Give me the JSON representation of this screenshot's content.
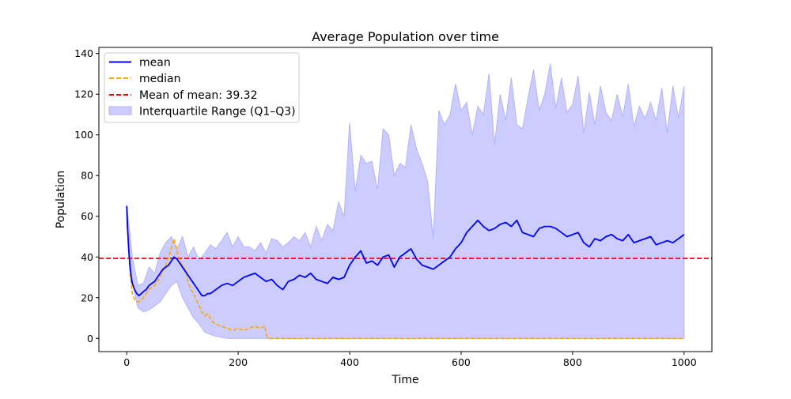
{
  "chart_data": {
    "type": "line",
    "title": "Average Population over time",
    "xlabel": "Time",
    "ylabel": "Population",
    "xlim": [
      -50,
      1050
    ],
    "ylim": [
      -6.5,
      143
    ],
    "xticks": [
      0,
      200,
      400,
      600,
      800,
      1000
    ],
    "yticks": [
      0,
      20,
      40,
      60,
      80,
      100,
      120,
      140
    ],
    "grid": false,
    "legend_position": "top-left",
    "colors": {
      "mean": "#0000ff",
      "median": "#ffa500",
      "mean_of_mean": "#ff0000",
      "iqr_fill": "#ccccff",
      "iqr_edge": "#b3b3ff"
    },
    "series": [
      {
        "name": "mean",
        "style": "solid",
        "color": "#0000ff",
        "x": [
          0,
          2,
          4,
          6,
          8,
          10,
          14,
          18,
          22,
          26,
          30,
          35,
          40,
          45,
          50,
          55,
          60,
          65,
          70,
          75,
          80,
          85,
          90,
          95,
          100,
          105,
          110,
          115,
          120,
          125,
          130,
          135,
          140,
          145,
          150,
          160,
          170,
          180,
          190,
          200,
          210,
          220,
          230,
          240,
          250,
          260,
          270,
          280,
          290,
          300,
          310,
          320,
          330,
          340,
          350,
          360,
          370,
          380,
          390,
          400,
          410,
          420,
          430,
          440,
          450,
          460,
          470,
          480,
          490,
          500,
          510,
          520,
          530,
          540,
          550,
          560,
          570,
          580,
          590,
          600,
          610,
          620,
          630,
          640,
          650,
          660,
          670,
          680,
          690,
          700,
          710,
          720,
          730,
          740,
          750,
          760,
          770,
          780,
          790,
          800,
          810,
          820,
          830,
          840,
          850,
          860,
          870,
          880,
          890,
          900,
          910,
          920,
          930,
          940,
          950,
          960,
          970,
          980,
          990,
          1000
        ],
        "y": [
          65,
          52,
          42,
          35,
          30,
          27,
          24,
          22,
          21,
          22,
          23,
          24,
          26,
          27,
          28,
          30,
          32,
          34,
          35,
          36,
          38,
          40,
          39,
          37,
          35,
          33,
          31,
          29,
          27,
          25,
          23,
          21,
          21,
          22,
          22,
          24,
          26,
          27,
          26,
          28,
          30,
          31,
          32,
          30,
          28,
          29,
          26,
          24,
          28,
          29,
          31,
          30,
          32,
          29,
          28,
          27,
          30,
          29,
          30,
          36,
          40,
          43,
          37,
          38,
          36,
          40,
          41,
          35,
          40,
          42,
          44,
          39,
          36,
          35,
          34,
          36,
          38,
          40,
          44,
          47,
          52,
          55,
          58,
          55,
          53,
          54,
          56,
          57,
          55,
          58,
          52,
          51,
          50,
          54,
          55,
          55,
          54,
          52,
          50,
          51,
          52,
          47,
          45,
          49,
          48,
          50,
          51,
          49,
          48,
          51,
          47,
          48,
          49,
          50,
          46,
          47,
          48,
          47,
          49,
          51
        ]
      },
      {
        "name": "median",
        "style": "dashed",
        "color": "#ffa500",
        "x": [
          0,
          2,
          4,
          6,
          8,
          10,
          14,
          18,
          22,
          26,
          30,
          35,
          40,
          45,
          50,
          55,
          60,
          65,
          70,
          75,
          80,
          85,
          90,
          95,
          100,
          105,
          110,
          115,
          120,
          125,
          130,
          135,
          140,
          145,
          150,
          155,
          160,
          170,
          180,
          190,
          200,
          210,
          220,
          230,
          240,
          248,
          250,
          252,
          255,
          260,
          300,
          400,
          500,
          600,
          700,
          800,
          900,
          1000
        ],
        "y": [
          64,
          50,
          40,
          32,
          27,
          22,
          19,
          18,
          18,
          19,
          20,
          22,
          24,
          25,
          26,
          28,
          30,
          33,
          36,
          40,
          44,
          49,
          43,
          38,
          36,
          34,
          28,
          24,
          22,
          19,
          16,
          13,
          11,
          12,
          10,
          8,
          7,
          6,
          5,
          4,
          5,
          4,
          5,
          6,
          5,
          6,
          2,
          1,
          0,
          0,
          0,
          0,
          0,
          0,
          0,
          0,
          0,
          0
        ]
      },
      {
        "name": "Mean of mean: 39.32",
        "style": "dashed",
        "color": "#ff0000",
        "value": 39.32
      },
      {
        "name": "Interquartile Range (Q1–Q3)",
        "style": "fill",
        "color": "#ccccff",
        "x": [
          0,
          10,
          20,
          30,
          40,
          50,
          60,
          70,
          80,
          90,
          100,
          110,
          120,
          130,
          140,
          150,
          160,
          170,
          180,
          190,
          200,
          210,
          220,
          230,
          240,
          250,
          260,
          270,
          280,
          290,
          300,
          310,
          320,
          330,
          340,
          350,
          360,
          370,
          380,
          390,
          400,
          410,
          420,
          430,
          440,
          450,
          460,
          470,
          480,
          490,
          500,
          510,
          520,
          530,
          540,
          550,
          560,
          570,
          580,
          590,
          600,
          610,
          620,
          630,
          640,
          650,
          660,
          670,
          680,
          690,
          700,
          710,
          720,
          730,
          740,
          750,
          760,
          770,
          780,
          790,
          800,
          810,
          820,
          830,
          840,
          850,
          860,
          870,
          880,
          890,
          900,
          910,
          920,
          930,
          940,
          950,
          960,
          970,
          980,
          990,
          1000
        ],
        "q1": [
          55,
          28,
          15,
          13,
          14,
          16,
          18,
          22,
          26,
          28,
          20,
          15,
          10,
          7,
          3,
          2,
          1,
          0.5,
          0,
          0,
          0,
          0,
          0,
          0,
          0,
          0,
          0,
          0,
          0,
          0,
          0,
          0,
          0,
          0,
          0,
          0,
          0,
          0,
          0,
          0,
          0,
          0,
          0,
          0,
          0,
          0,
          0,
          0,
          0,
          0,
          0,
          0,
          0,
          0,
          0,
          0,
          0,
          0,
          0,
          0,
          0,
          0,
          0,
          0,
          0,
          0,
          0,
          0,
          0,
          0,
          0,
          0,
          0,
          0,
          0,
          0,
          0,
          0,
          0,
          0,
          0,
          0,
          0,
          0,
          0,
          0,
          0,
          0,
          0,
          0,
          0,
          0,
          0,
          0,
          0,
          0,
          0,
          0,
          0,
          0,
          0
        ],
        "q3": [
          66,
          40,
          26,
          27,
          35,
          32,
          42,
          47,
          50,
          44,
          50,
          40,
          45,
          38,
          42,
          46,
          44,
          48,
          52,
          45,
          50,
          45,
          45,
          43,
          47,
          42,
          49,
          48,
          45,
          47,
          50,
          48,
          52,
          45,
          55,
          48,
          56,
          53,
          67,
          60,
          106,
          72,
          90,
          86,
          87,
          73,
          103,
          100,
          80,
          86,
          84,
          105,
          93,
          86,
          77,
          49,
          112,
          105,
          110,
          125,
          112,
          116,
          100,
          114,
          110,
          130,
          95,
          120,
          107,
          128,
          105,
          103,
          118,
          132,
          112,
          120,
          135,
          113,
          128,
          111,
          115,
          129,
          101,
          121,
          105,
          124,
          111,
          107,
          120,
          109,
          125,
          104,
          114,
          108,
          116,
          107,
          123,
          101,
          124,
          108,
          124
        ]
      }
    ]
  }
}
